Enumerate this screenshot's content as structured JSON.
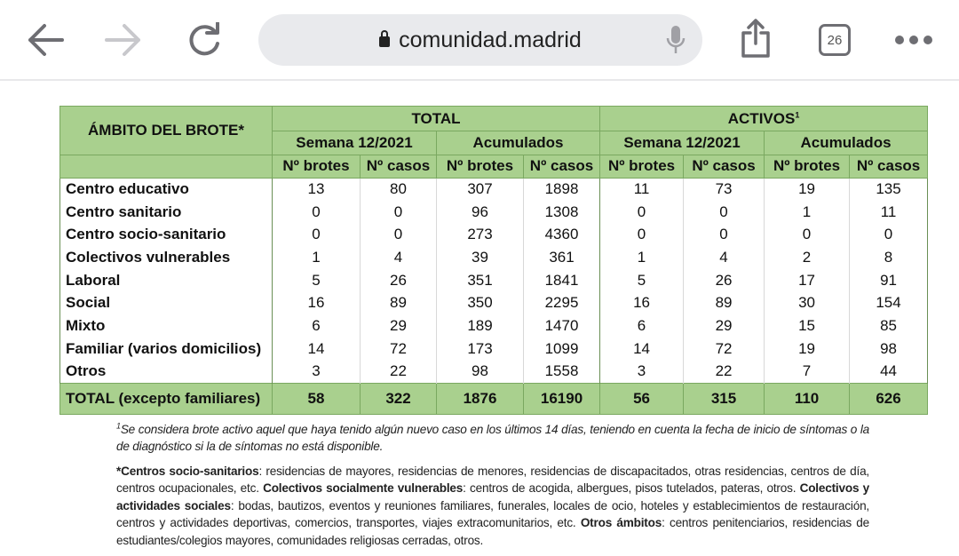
{
  "browser": {
    "url": "comunidad.madrid",
    "tab_count": "26",
    "icons": [
      "back-arrow-icon",
      "forward-arrow-icon",
      "reload-icon",
      "lock-icon",
      "microphone-icon",
      "share-icon",
      "tabs-icon",
      "more-icon"
    ]
  },
  "table": {
    "corner": "ÁMBITO DEL BROTE*",
    "groups": [
      "TOTAL",
      "ACTIVOS"
    ],
    "group_sup": "1",
    "subgroups": [
      "Semana 12/2021",
      "Acumulados",
      "Semana 12/2021",
      "Acumulados"
    ],
    "cols": [
      "Nº brotes",
      "Nº casos",
      "Nº brotes",
      "Nº casos",
      "Nº brotes",
      "Nº casos",
      "Nº brotes",
      "Nº casos"
    ],
    "rows": [
      {
        "label": "Centro educativo",
        "v": [
          "13",
          "80",
          "307",
          "1898",
          "11",
          "73",
          "19",
          "135"
        ]
      },
      {
        "label": "Centro sanitario",
        "v": [
          "0",
          "0",
          "96",
          "1308",
          "0",
          "0",
          "1",
          "11"
        ]
      },
      {
        "label": "Centro socio-sanitario",
        "v": [
          "0",
          "0",
          "273",
          "4360",
          "0",
          "0",
          "0",
          "0"
        ]
      },
      {
        "label": "Colectivos vulnerables",
        "v": [
          "1",
          "4",
          "39",
          "361",
          "1",
          "4",
          "2",
          "8"
        ]
      },
      {
        "label": "Laboral",
        "v": [
          "5",
          "26",
          "351",
          "1841",
          "5",
          "26",
          "17",
          "91"
        ]
      },
      {
        "label": "Social",
        "v": [
          "16",
          "89",
          "350",
          "2295",
          "16",
          "89",
          "30",
          "154"
        ]
      },
      {
        "label": "Mixto",
        "v": [
          "6",
          "29",
          "189",
          "1470",
          "6",
          "29",
          "15",
          "85"
        ]
      },
      {
        "label": "Familiar (varios domicilios)",
        "v": [
          "14",
          "72",
          "173",
          "1099",
          "14",
          "72",
          "19",
          "98"
        ]
      },
      {
        "label": "Otros",
        "v": [
          "3",
          "22",
          "98",
          "1558",
          "3",
          "22",
          "7",
          "44"
        ]
      }
    ],
    "total": {
      "label": "TOTAL (excepto familiares)",
      "v": [
        "58",
        "322",
        "1876",
        "16190",
        "56",
        "315",
        "110",
        "626"
      ]
    },
    "header_color": "#a9d08e"
  },
  "notes": {
    "n1_sup": "1",
    "n1": "Se considera brote activo aquel que haya tenido algún nuevo caso en los últimos 14 días, teniendo en cuenta la fecha de inicio de síntomas o la de diagnóstico si la de síntomas no está disponible.",
    "b1": "*Centros socio-sanitarios",
    "t1": ": residencias de mayores, residencias de menores, residencias de discapacitados, otras residencias, centros de día, centros ocupacionales, etc. ",
    "b2": "Colectivos socialmente vulnerables",
    "t2": ": centros de acogida, albergues, pisos tutelados, pateras, otros. ",
    "b3": "Colectivos y actividades sociales",
    "t3": ": bodas, bautizos, eventos y reuniones familiares, funerales, locales de ocio, hoteles y establecimientos de restauración, centros y actividades deportivas, comercios, transportes, viajes extracomunitarios, etc. ",
    "b4": "Otros ámbitos",
    "t4": ": centros penitenciarios, residencias de estudiantes/colegios mayores, comunidades religiosas cerradas, otros."
  }
}
